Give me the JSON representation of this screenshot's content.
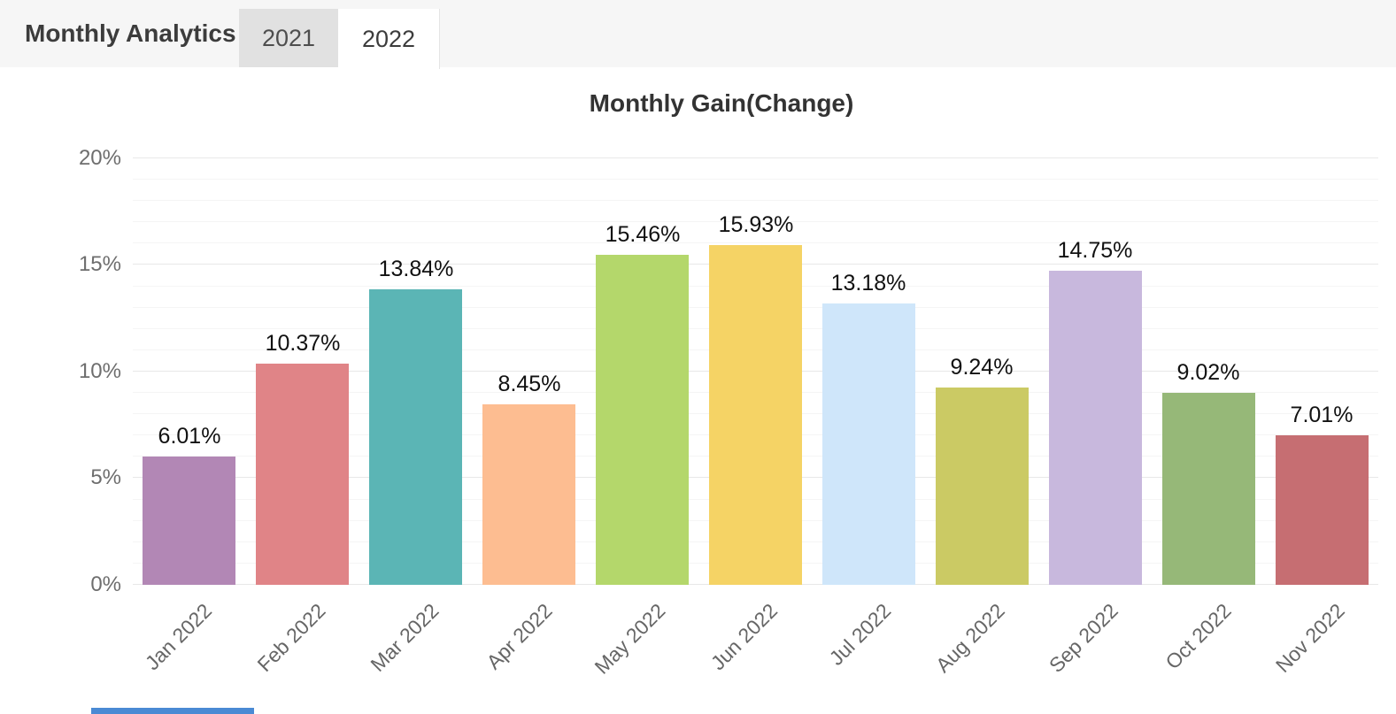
{
  "header": {
    "title": "Monthly Analytics",
    "tabs": [
      {
        "label": "2021",
        "active": false
      },
      {
        "label": "2022",
        "active": true
      }
    ]
  },
  "chart_data": {
    "type": "bar",
    "title": "Monthly Gain(Change)",
    "xlabel": "",
    "ylabel": "",
    "ylim": [
      0,
      20
    ],
    "y_ticks": [
      0,
      5,
      10,
      15,
      20
    ],
    "y_tick_labels": [
      "0%",
      "5%",
      "10%",
      "15%",
      "20%"
    ],
    "minor_grid_step": 1,
    "grid": "horizontal",
    "legend": "none",
    "categories": [
      "Jan 2022",
      "Feb 2022",
      "Mar 2022",
      "Apr 2022",
      "May 2022",
      "Jun 2022",
      "Jul 2022",
      "Aug 2022",
      "Sep 2022",
      "Oct 2022",
      "Nov 2022"
    ],
    "values": [
      6.01,
      10.37,
      13.84,
      8.45,
      15.46,
      15.93,
      13.18,
      9.24,
      14.75,
      9.02,
      7.01
    ],
    "value_labels": [
      "6.01%",
      "10.37%",
      "13.84%",
      "8.45%",
      "15.46%",
      "15.93%",
      "13.18%",
      "9.24%",
      "14.75%",
      "9.02%",
      "7.01%"
    ],
    "bar_colors": [
      "#b287b5",
      "#e08487",
      "#5bb5b5",
      "#fdbd91",
      "#b4d76b",
      "#f5d365",
      "#cfe6fa",
      "#cbca64",
      "#c8b8dd",
      "#96b878",
      "#c66e72"
    ]
  },
  "theme": {
    "header_bg": "#f6f6f6",
    "tab_inactive_bg": "#e1e1e1",
    "tab_active_bg": "#ffffff",
    "title_color": "#3c3c3c",
    "axis_label_color": "#6e6e6e",
    "grid_major_color": "#e8e8e8",
    "grid_minor_color": "#f5f5f5",
    "value_label_color": "#111111"
  },
  "partial_bottom_bar": {
    "color": "#4a8ad4"
  }
}
